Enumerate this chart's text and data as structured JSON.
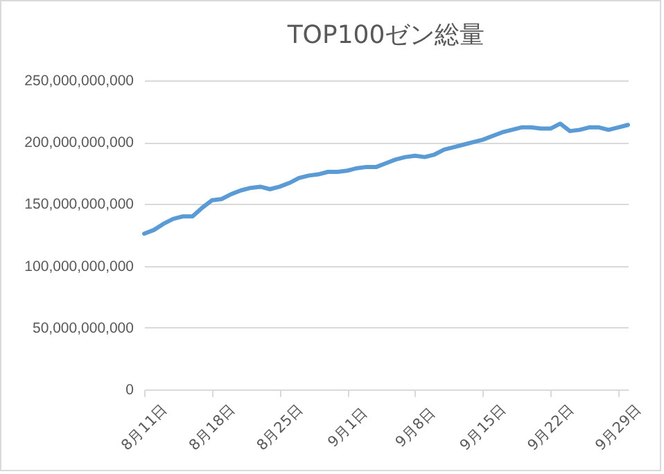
{
  "chart_data": {
    "type": "line",
    "title": "TOP100ゼン総量",
    "categories": [
      "8月11日",
      null,
      null,
      null,
      null,
      null,
      null,
      "8月18日",
      null,
      null,
      null,
      null,
      null,
      null,
      "8月25日",
      null,
      null,
      null,
      null,
      null,
      null,
      "9月1日",
      null,
      null,
      null,
      null,
      null,
      null,
      "9月8日",
      null,
      null,
      null,
      null,
      null,
      null,
      "9月15日",
      null,
      null,
      null,
      null,
      null,
      null,
      "9月22日",
      null,
      null,
      null,
      null,
      null,
      null,
      "9月29日",
      null
    ],
    "series": [
      {
        "color": "#5b9bd5",
        "values": [
          126000000000,
          129000000000,
          134000000000,
          138000000000,
          140000000000,
          140000000000,
          147000000000,
          153000000000,
          154000000000,
          158000000000,
          161000000000,
          163000000000,
          164000000000,
          162000000000,
          164000000000,
          167000000000,
          171000000000,
          173000000000,
          174000000000,
          176000000000,
          176000000000,
          177000000000,
          179000000000,
          180000000000,
          180000000000,
          183000000000,
          186000000000,
          188000000000,
          189000000000,
          188000000000,
          190000000000,
          194000000000,
          196000000000,
          198000000000,
          200000000000,
          202000000000,
          205000000000,
          208000000000,
          210000000000,
          212000000000,
          212000000000,
          211000000000,
          211000000000,
          215000000000,
          209000000000,
          210000000000,
          212000000000,
          212000000000,
          210000000000,
          212000000000,
          214000000000
        ]
      }
    ],
    "ylim": [
      0,
      250000000000
    ],
    "yticks": [
      0,
      {
        "value": 50000000000,
        "label": "50,000,000,000"
      },
      {
        "value": 100000000000,
        "label": "100,000,000,000"
      },
      {
        "value": 150000000000,
        "label": "150,000,000,000"
      },
      {
        "value": 200000000000,
        "label": "200,000,000,000"
      },
      {
        "value": 250000000000,
        "label": "250,000,000,000"
      }
    ],
    "grid": "y",
    "marker": "none",
    "line_style": "solid"
  }
}
